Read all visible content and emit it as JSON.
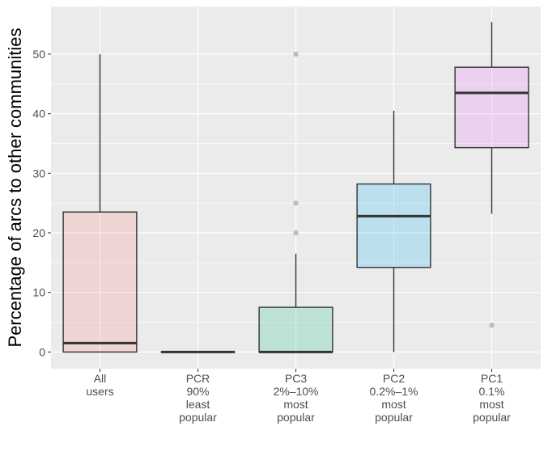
{
  "chart_data": {
    "type": "boxplot",
    "title": "",
    "xlabel": "",
    "ylabel": "Percentage of arcs to other communities",
    "ylim": [
      -2.8,
      58
    ],
    "yticks": [
      0,
      10,
      20,
      30,
      40,
      50
    ],
    "yticklabels": [
      "0",
      "10",
      "20",
      "30",
      "40",
      "50"
    ],
    "grid": true,
    "legend": "none",
    "categories": [
      {
        "lines": [
          "All",
          "users"
        ],
        "color": "#f8766d",
        "whisker_low": 0,
        "q1": 0,
        "median": 1.5,
        "q3": 23.5,
        "whisker_high": 50,
        "outliers": []
      },
      {
        "lines": [
          "PCR",
          "90%",
          "least",
          "popular"
        ],
        "color": "#a3a500",
        "whisker_low": 0,
        "q1": 0,
        "median": 0,
        "q3": 0,
        "whisker_high": 0,
        "outliers": []
      },
      {
        "lines": [
          "PC3",
          "2%–10%",
          "most",
          "popular"
        ],
        "color": "#00bf7d",
        "whisker_low": 0,
        "q1": 0,
        "median": 0,
        "q3": 7.5,
        "whisker_high": 16.5,
        "outliers": [
          20,
          25,
          50
        ]
      },
      {
        "lines": [
          "PC2",
          "0.2%–1%",
          "most",
          "popular"
        ],
        "color": "#00b0f6",
        "whisker_low": 0,
        "q1": 14.2,
        "median": 22.8,
        "q3": 28.2,
        "whisker_high": 40.5,
        "outliers": []
      },
      {
        "lines": [
          "PC1",
          "0.1%",
          "most",
          "popular"
        ],
        "color": "#e76bf3",
        "whisker_low": 23.2,
        "q1": 34.3,
        "median": 43.5,
        "q3": 47.8,
        "whisker_high": 55.4,
        "outliers": [
          4.5
        ]
      }
    ]
  }
}
